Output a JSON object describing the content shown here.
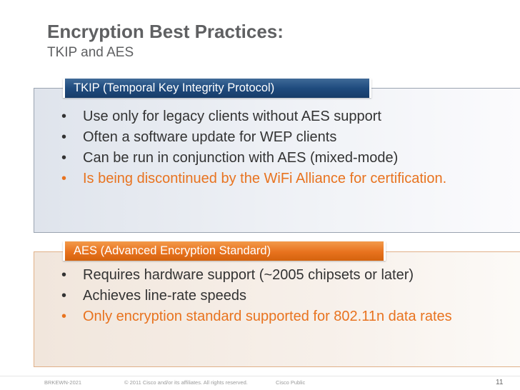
{
  "slide": {
    "title": "Encryption Best Practices:",
    "subtitle": "TKIP and AES"
  },
  "tkip": {
    "heading": "TKIP (Temporal Key Integrity Protocol)",
    "accent": "#1f4b7e",
    "bullets": [
      "Use only for legacy clients without AES support",
      "Often a software update for WEP clients",
      "Can be run in conjunction with AES (mixed-mode)",
      "Is being discontinued by the WiFi Alliance for certification."
    ],
    "bullet_glyph": "•"
  },
  "aes": {
    "heading": "AES (Advanced Encryption Standard)",
    "accent": "#e8721e",
    "bullets": [
      "Requires hardware support (~2005 chipsets or later)",
      "Achieves line-rate speeds",
      "Only encryption standard supported for 802.11n data rates"
    ],
    "bullet_glyph": "•"
  },
  "footer": {
    "session": "BRKEWN-2021",
    "copyright": "© 2011 Cisco and/or its affiliates. All rights reserved.",
    "classification": "Cisco Public",
    "page": "11"
  },
  "colors": {
    "title": "#5f6062",
    "highlight": "#e8731f"
  }
}
